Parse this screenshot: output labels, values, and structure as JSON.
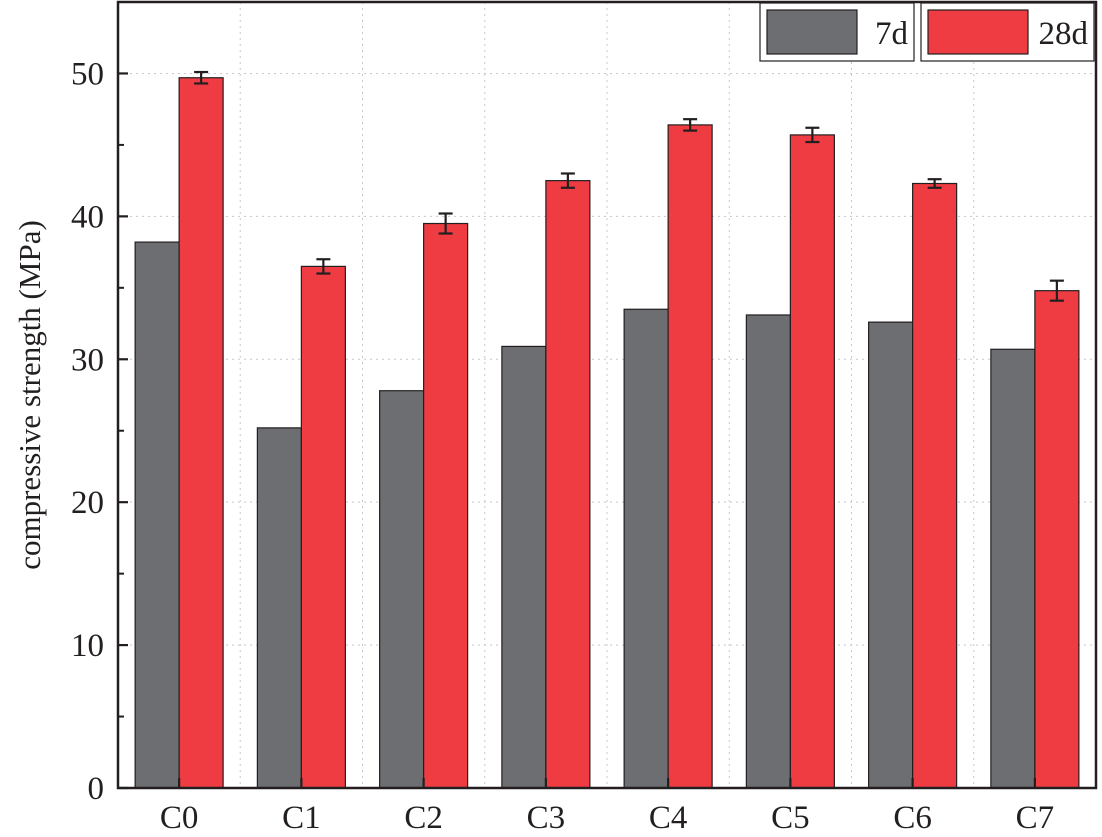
{
  "chart_data": {
    "type": "bar",
    "title": "",
    "xlabel": "",
    "ylabel": "compressive strength (MPa)",
    "categories": [
      "C0",
      "C1",
      "C2",
      "C3",
      "C4",
      "C5",
      "C6",
      "C7"
    ],
    "ylim": [
      0,
      55
    ],
    "yticks": [
      0,
      10,
      20,
      30,
      40,
      50
    ],
    "ytick_labels": [
      "0",
      "10",
      "20",
      "30",
      "40",
      "50"
    ],
    "grid": true,
    "legend_position": "top-right",
    "series": [
      {
        "name": "7d",
        "color": "#6d6e71",
        "values": [
          38.2,
          25.2,
          27.8,
          30.9,
          33.5,
          33.1,
          32.6,
          30.7
        ]
      },
      {
        "name": "28d",
        "color": "#ef3b42",
        "values": [
          49.7,
          36.5,
          39.5,
          42.5,
          46.4,
          45.7,
          42.3,
          34.8
        ],
        "errors": [
          0.4,
          0.5,
          0.7,
          0.5,
          0.4,
          0.5,
          0.3,
          0.7
        ]
      }
    ]
  }
}
